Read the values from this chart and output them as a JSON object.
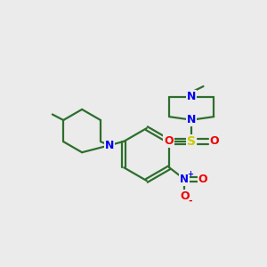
{
  "background_color": "#ebebeb",
  "bond_color": "#2d6e2d",
  "N_color": "#0000ee",
  "O_color": "#ee0000",
  "S_color": "#cccc00",
  "line_width": 1.6,
  "fig_width": 3.0,
  "fig_height": 3.0,
  "dpi": 100,
  "xlim": [
    0,
    10
  ],
  "ylim": [
    0,
    10
  ]
}
